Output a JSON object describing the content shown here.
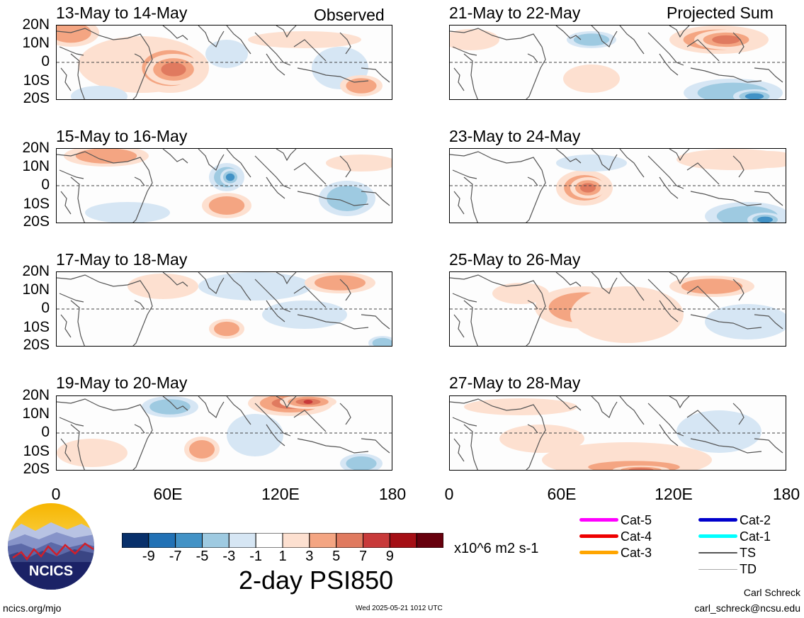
{
  "panels_left": [
    {
      "title": "13-May to 14-May",
      "tag": "Observed"
    },
    {
      "title": "15-May to 16-May",
      "tag": ""
    },
    {
      "title": "17-May to 18-May",
      "tag": ""
    },
    {
      "title": "19-May to 20-May",
      "tag": ""
    }
  ],
  "panels_right": [
    {
      "title": "21-May to 22-May",
      "tag": "Projected Sum"
    },
    {
      "title": "23-May to 24-May",
      "tag": ""
    },
    {
      "title": "25-May to 26-May",
      "tag": ""
    },
    {
      "title": "27-May to 28-May",
      "tag": ""
    }
  ],
  "lat_labels": [
    "20N",
    "10N",
    "0",
    "10S",
    "20S"
  ],
  "lon_labels": [
    "0",
    "60E",
    "120E",
    "180"
  ],
  "colorbar": {
    "colors": [
      "#08306b",
      "#2171b5",
      "#4292c6",
      "#9ecae1",
      "#d6e6f4",
      "#ffffff",
      "#fde0d0",
      "#f4a582",
      "#e07a5f",
      "#c83a3a",
      "#a50f15",
      "#67000d"
    ],
    "tick_labels": [
      "-9",
      "-7",
      "-5",
      "-3",
      "-1",
      "1",
      "3",
      "5",
      "7",
      "9"
    ],
    "units": "x10^6 m2 s-1",
    "title": "2-day PSI850"
  },
  "storm_legend": [
    {
      "label": "Cat-5",
      "color": "#ff00ff"
    },
    {
      "label": "Cat-4",
      "color": "#ee0000"
    },
    {
      "label": "Cat-3",
      "color": "#ffa500"
    },
    {
      "label": "Cat-2",
      "color": "#0000cc"
    },
    {
      "label": "Cat-1",
      "color": "#00ffff"
    },
    {
      "label": "TS",
      "color": "#555555"
    },
    {
      "label": "TD",
      "color": "#aaaaaa"
    }
  ],
  "logo_text": "NCICS",
  "footer": {
    "url": "ncics.org/mjo",
    "timestamp": "Wed 2025-05-21 1012 UTC",
    "author": "Carl Schreck",
    "email": "carl_schreck@ncsu.edu"
  }
}
